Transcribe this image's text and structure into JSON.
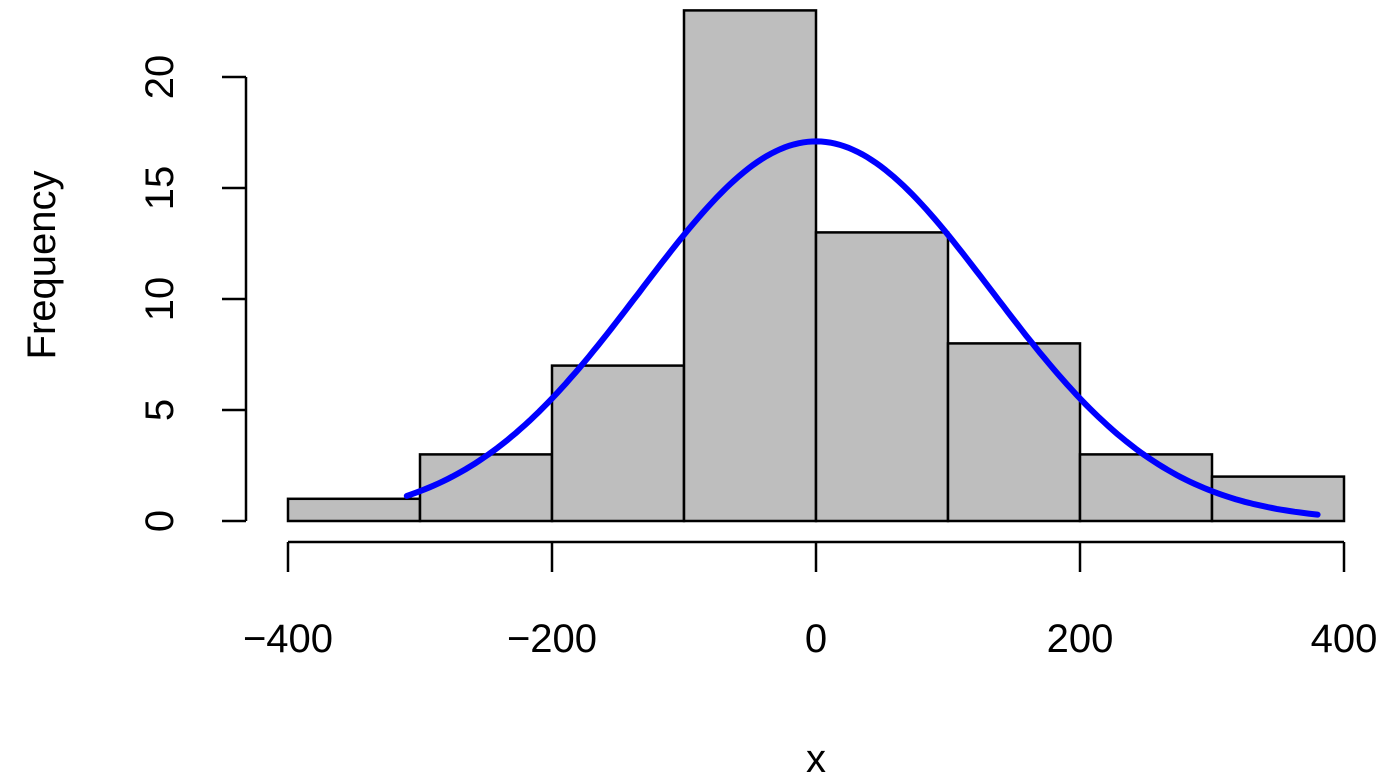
{
  "chart_data": {
    "type": "bar",
    "subtype": "histogram",
    "title": "",
    "xlabel": "x",
    "ylabel": "Frequency",
    "bins": [
      {
        "from": -400,
        "to": -300,
        "count": 1
      },
      {
        "from": -300,
        "to": -200,
        "count": 3
      },
      {
        "from": -200,
        "to": -100,
        "count": 7
      },
      {
        "from": -100,
        "to": 0,
        "count": 23
      },
      {
        "from": 0,
        "to": 100,
        "count": 13
      },
      {
        "from": 100,
        "to": 200,
        "count": 8
      },
      {
        "from": 200,
        "to": 300,
        "count": 3
      },
      {
        "from": 300,
        "to": 400,
        "count": 2
      }
    ],
    "x_ticks": [
      -400,
      -200,
      0,
      200,
      400
    ],
    "x_tick_labels": [
      "−400",
      "−200",
      "0",
      "200",
      "400"
    ],
    "y_ticks": [
      0,
      5,
      10,
      15,
      20
    ],
    "y_tick_labels": [
      "0",
      "5",
      "10",
      "15",
      "20"
    ],
    "xlim": [
      -400,
      400
    ],
    "ylim": [
      0,
      23
    ],
    "bar_fill": "#bebebe",
    "bar_stroke": "#000000",
    "curve": {
      "type": "normal-density",
      "color": "#0000ff",
      "mean": 0,
      "peak": 17.1,
      "sd": 133,
      "x_range": [
        -310,
        380
      ]
    },
    "grid": false
  }
}
